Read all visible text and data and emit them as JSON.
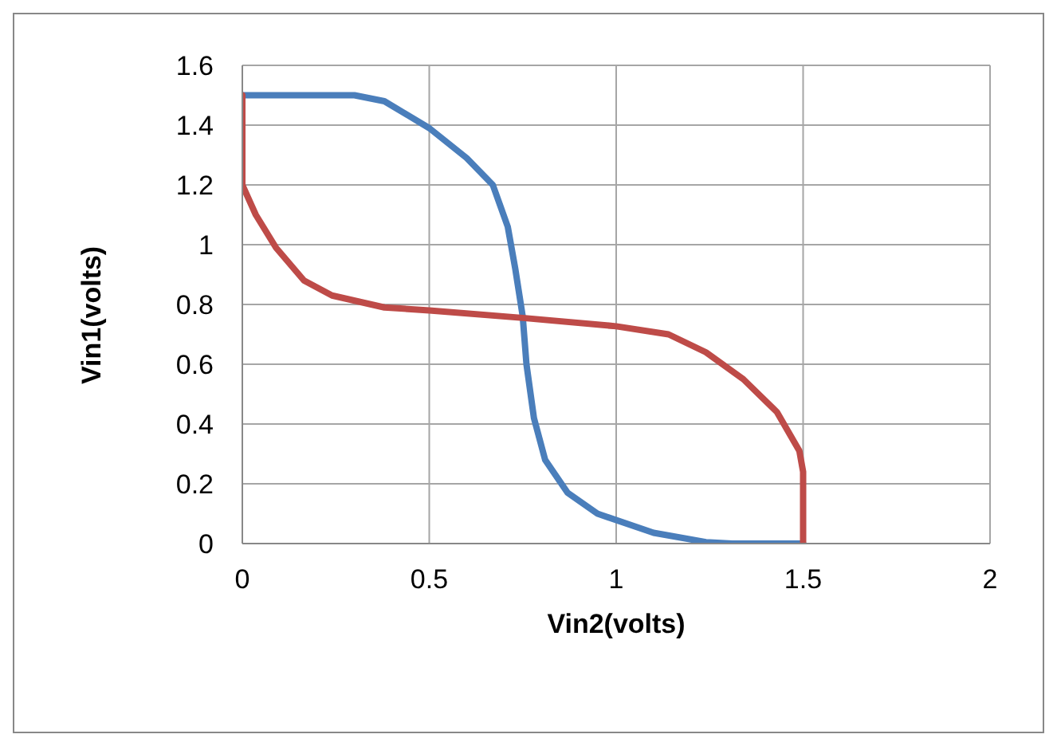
{
  "chart_data": {
    "type": "line",
    "xlabel": "Vin2(volts)",
    "ylabel": "Vin1(volts)",
    "xlim": [
      0,
      2
    ],
    "xticks": [
      0,
      0.5,
      1,
      1.5,
      2
    ],
    "ylim": [
      0,
      1.6
    ],
    "yticks": [
      0,
      0.2,
      0.4,
      0.6,
      0.8,
      1,
      1.2,
      1.4,
      1.6
    ],
    "grid": true,
    "marker": "none",
    "line_style": "solid",
    "series": [
      {
        "color": "#4a7ebb",
        "x": [
          0,
          0.1,
          0.2,
          0.3,
          0.38,
          0.5,
          0.6,
          0.67,
          0.71,
          0.73,
          0.75,
          0.76,
          0.78,
          0.81,
          0.87,
          0.95,
          1.1,
          1.24,
          1.31,
          1.5
        ],
        "values": [
          1.5,
          1.5,
          1.5,
          1.5,
          1.48,
          1.39,
          1.29,
          1.2,
          1.06,
          0.92,
          0.76,
          0.6,
          0.42,
          0.28,
          0.17,
          0.1,
          0.036,
          0.005,
          0,
          0
        ]
      },
      {
        "color": "#be4b48",
        "x": [
          0,
          0,
          0.036,
          0.09,
          0.165,
          0.24,
          0.38,
          0.5,
          0.75,
          1.0,
          1.14,
          1.24,
          1.34,
          1.43,
          1.49,
          1.5,
          1.5
        ],
        "values": [
          1.5,
          1.2,
          1.1,
          0.99,
          0.88,
          0.83,
          0.79,
          0.78,
          0.755,
          0.727,
          0.7,
          0.64,
          0.55,
          0.44,
          0.31,
          0.24,
          0
        ]
      }
    ]
  }
}
